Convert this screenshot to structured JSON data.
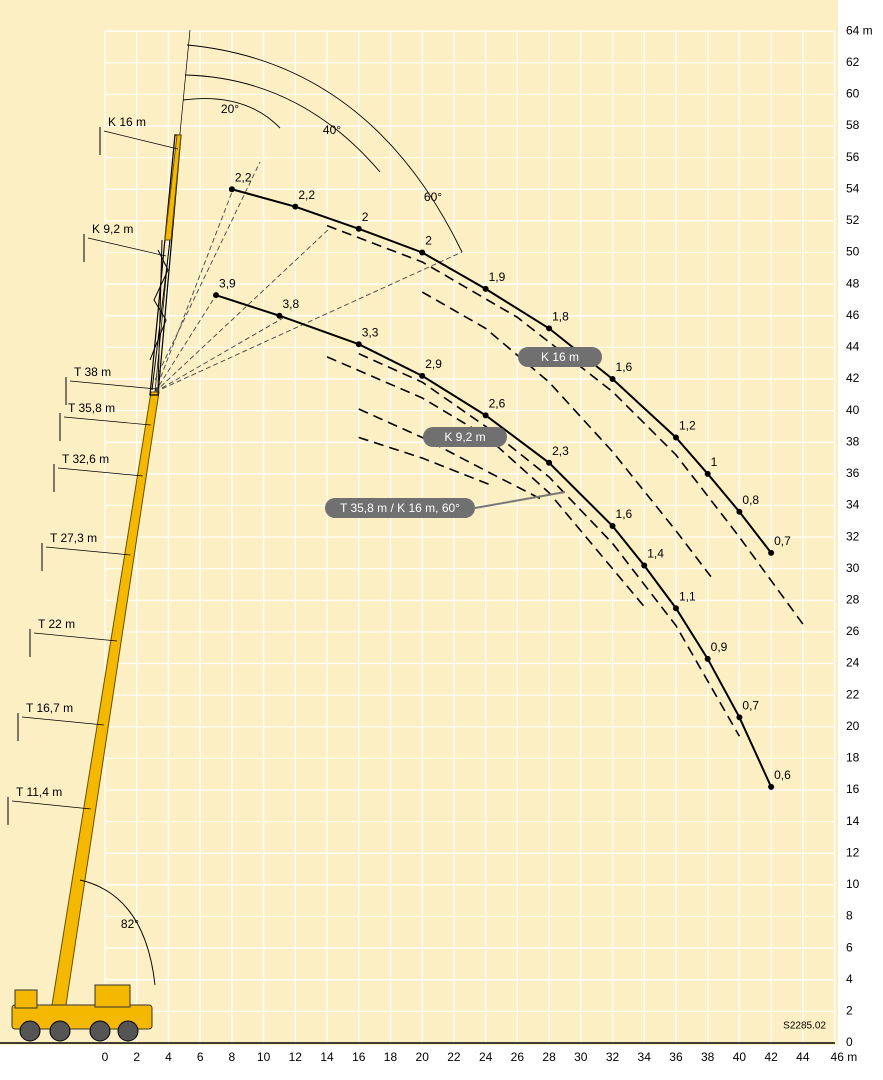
{
  "chart_data": {
    "type": "line",
    "xlim": [
      0,
      46
    ],
    "ylim": [
      0,
      64
    ],
    "xticks": [
      0,
      2,
      4,
      6,
      8,
      10,
      12,
      14,
      16,
      18,
      20,
      22,
      24,
      26,
      28,
      30,
      32,
      34,
      36,
      38,
      40,
      42,
      44,
      {
        "value": 46,
        "label": "46 m"
      }
    ],
    "yticks": [
      0,
      2,
      4,
      6,
      8,
      10,
      12,
      14,
      16,
      18,
      20,
      22,
      24,
      26,
      28,
      30,
      32,
      34,
      36,
      38,
      40,
      42,
      44,
      46,
      48,
      50,
      52,
      54,
      56,
      58,
      60,
      62,
      {
        "value": 64,
        "label": "64 m"
      }
    ],
    "grid": true,
    "background": "#fcefc3",
    "grid_color": "#ffffff",
    "series": [
      {
        "name": "K 16 m",
        "color": "#000000",
        "x": [
          8,
          12,
          16,
          20,
          24,
          28,
          32,
          36,
          38,
          40,
          42
        ],
        "values": [
          54,
          52.9,
          51.5,
          50,
          47.7,
          45.2,
          42,
          38.3,
          36,
          33.6,
          31
        ],
        "value_labels": [
          "2,2",
          "2,2",
          "2",
          "2",
          "1,9",
          "1,8",
          "1,6",
          "1,2",
          "1",
          "0,8",
          "0,7"
        ]
      },
      {
        "name": "K 9,2 m",
        "color": "#000000",
        "x": [
          7,
          11,
          16,
          20,
          24,
          28,
          32,
          34,
          36,
          38,
          40,
          42
        ],
        "values": [
          47.3,
          46,
          44.2,
          42.2,
          39.7,
          36.7,
          32.7,
          30.2,
          27.5,
          24.3,
          20.6,
          16.2
        ],
        "value_labels": [
          "3,9",
          "3,8",
          "3,3",
          "2,9",
          "2,6",
          "2,3",
          "1,6",
          "1,4",
          "1,1",
          "0,9",
          "0,7",
          "0,6"
        ]
      }
    ],
    "dashed_curves": [
      {
        "x": [
          14,
          20,
          26,
          32,
          36,
          40,
          44
        ],
        "values": [
          51.7,
          49.4,
          45.9,
          41.2,
          37.2,
          32,
          26.5
        ]
      },
      {
        "x": [
          20,
          24,
          28,
          32,
          36,
          38.2
        ],
        "values": [
          47.5,
          45.2,
          41.8,
          37.4,
          32.4,
          29.5
        ]
      },
      {
        "x": [
          14,
          20,
          24,
          28,
          30,
          34
        ],
        "values": [
          43.4,
          40.8,
          38.4,
          34.8,
          32.4,
          27.6
        ]
      },
      {
        "x": [
          16,
          20,
          24,
          28,
          32,
          36,
          40
        ],
        "values": [
          43.6,
          41.8,
          39,
          35.8,
          31.6,
          26.4,
          19.4
        ]
      },
      {
        "x": [
          16,
          20,
          24,
          27.7
        ],
        "values": [
          40.1,
          38.3,
          36.2,
          34.3
        ]
      },
      {
        "x": [
          16,
          20,
          24.3
        ],
        "values": [
          38.3,
          37,
          35.3
        ]
      }
    ],
    "boom_labels": [
      "K 16 m",
      "K 9,2 m",
      "T 38 m",
      "T 35,8 m",
      "T 32,6 m",
      "T 27,3 m",
      "T 22 m",
      "T 16,7 m",
      "T 11,4 m"
    ],
    "angle_labels": [
      "20°",
      "40°",
      "60°",
      "82°"
    ],
    "annotation": "T 35,8 m / K 16 m, 60°",
    "code": "S2285.02"
  }
}
